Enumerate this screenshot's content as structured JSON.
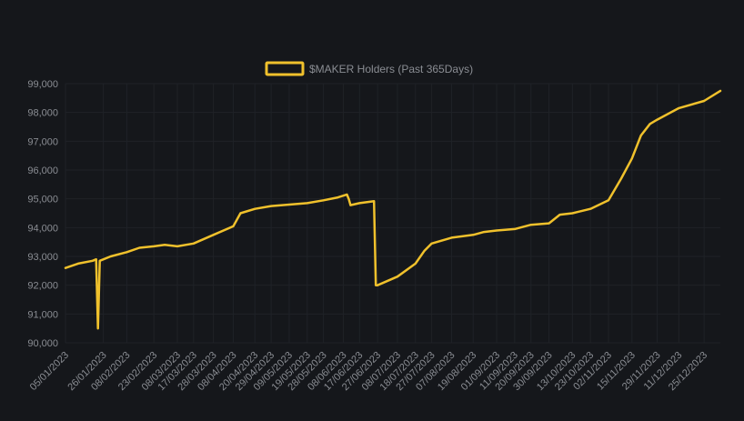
{
  "chart_data": {
    "type": "line",
    "title": "",
    "xlabel": "",
    "ylabel": "",
    "legend": {
      "position": "top-center"
    },
    "grid": true,
    "ylim": [
      90000,
      99000
    ],
    "y_ticks": [
      90000,
      91000,
      92000,
      93000,
      94000,
      95000,
      96000,
      97000,
      98000,
      99000
    ],
    "y_tick_labels": [
      "90,000",
      "91,000",
      "92,000",
      "93,000",
      "94,000",
      "95,000",
      "96,000",
      "97,000",
      "98,000",
      "99,000"
    ],
    "x_ticks": [
      "05/01/2023",
      "26/01/2023",
      "08/02/2023",
      "23/02/2023",
      "08/03/2023",
      "17/03/2023",
      "28/03/2023",
      "08/04/2023",
      "20/04/2023",
      "29/04/2023",
      "09/05/2023",
      "19/05/2023",
      "28/05/2023",
      "08/06/2023",
      "17/06/2023",
      "27/06/2023",
      "08/07/2023",
      "18/07/2023",
      "27/07/2023",
      "07/08/2023",
      "19/08/2023",
      "01/09/2023",
      "11/09/2023",
      "20/09/2023",
      "30/09/2023",
      "13/10/2023",
      "23/10/2023",
      "02/11/2023",
      "15/11/2023",
      "29/11/2023",
      "11/12/2023",
      "25/12/2023"
    ],
    "colors": {
      "line": "#f0c12c",
      "background": "#15171b",
      "grid": "#1f2227",
      "text": "#8a8d93"
    },
    "series": [
      {
        "name": "$MAKER Holders (Past 365Days)",
        "points": [
          [
            "05/01/2023",
            92600
          ],
          [
            "12/01/2023",
            92750
          ],
          [
            "20/01/2023",
            92850
          ],
          [
            "22/01/2023",
            92900
          ],
          [
            "23/01/2023",
            90500
          ],
          [
            "24/01/2023",
            92850
          ],
          [
            "30/01/2023",
            93000
          ],
          [
            "08/02/2023",
            93150
          ],
          [
            "15/02/2023",
            93300
          ],
          [
            "23/02/2023",
            93350
          ],
          [
            "01/03/2023",
            93400
          ],
          [
            "08/03/2023",
            93350
          ],
          [
            "17/03/2023",
            93450
          ],
          [
            "28/03/2023",
            93750
          ],
          [
            "08/04/2023",
            94050
          ],
          [
            "12/04/2023",
            94500
          ],
          [
            "20/04/2023",
            94650
          ],
          [
            "29/04/2023",
            94750
          ],
          [
            "09/05/2023",
            94800
          ],
          [
            "19/05/2023",
            94850
          ],
          [
            "28/05/2023",
            94950
          ],
          [
            "05/06/2023",
            95050
          ],
          [
            "10/06/2023",
            95150
          ],
          [
            "11/06/2023",
            95000
          ],
          [
            "12/06/2023",
            94780
          ],
          [
            "17/06/2023",
            94850
          ],
          [
            "25/06/2023",
            94920
          ],
          [
            "26/06/2023",
            92000
          ],
          [
            "27/06/2023",
            92000
          ],
          [
            "08/07/2023",
            92300
          ],
          [
            "18/07/2023",
            92750
          ],
          [
            "23/07/2023",
            93200
          ],
          [
            "27/07/2023",
            93450
          ],
          [
            "07/08/2023",
            93650
          ],
          [
            "19/08/2023",
            93750
          ],
          [
            "25/08/2023",
            93850
          ],
          [
            "01/09/2023",
            93900
          ],
          [
            "11/09/2023",
            93950
          ],
          [
            "20/09/2023",
            94100
          ],
          [
            "30/09/2023",
            94150
          ],
          [
            "06/10/2023",
            94450
          ],
          [
            "13/10/2023",
            94500
          ],
          [
            "23/10/2023",
            94650
          ],
          [
            "02/11/2023",
            94950
          ],
          [
            "09/11/2023",
            95700
          ],
          [
            "15/11/2023",
            96400
          ],
          [
            "20/11/2023",
            97200
          ],
          [
            "25/11/2023",
            97600
          ],
          [
            "29/11/2023",
            97750
          ],
          [
            "11/12/2023",
            98150
          ],
          [
            "25/12/2023",
            98400
          ],
          [
            "03/01/2024",
            98750
          ]
        ]
      }
    ]
  }
}
